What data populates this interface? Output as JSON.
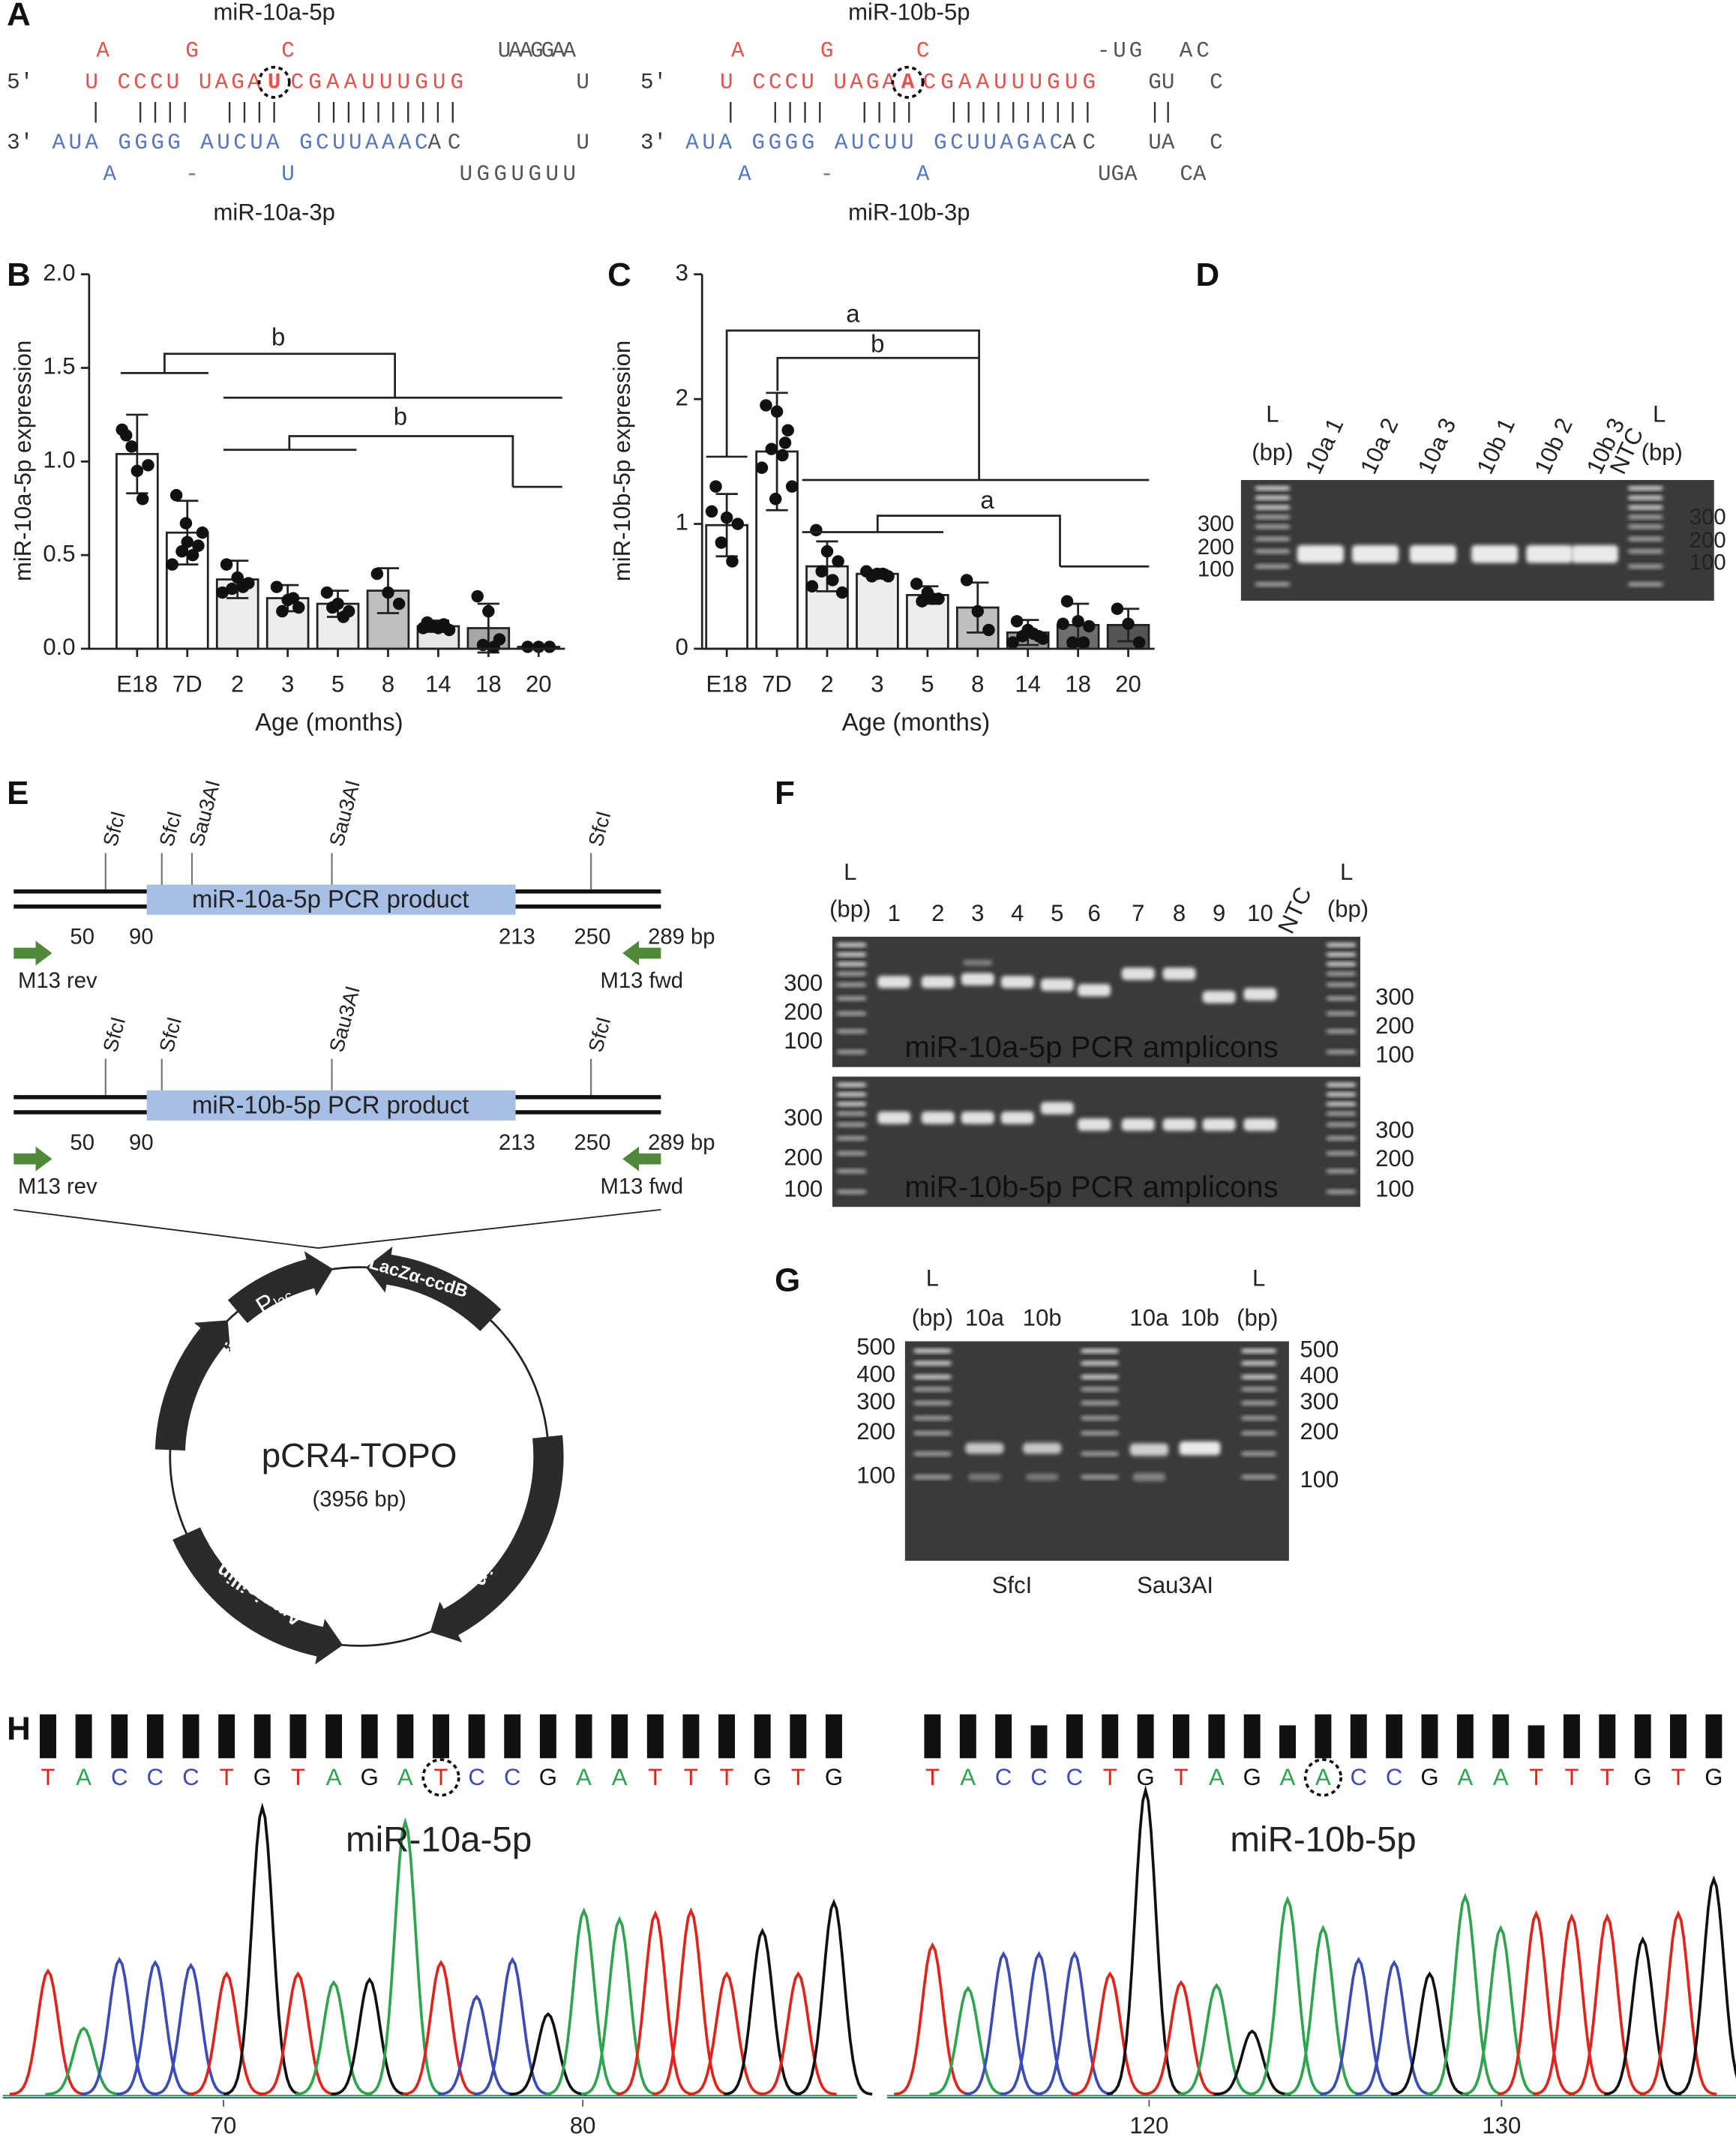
{
  "panel_labels": [
    "A",
    "B",
    "C",
    "D",
    "E",
    "F",
    "G",
    "H"
  ],
  "panel_a": {
    "colors": {
      "guide": "#e5514b",
      "passenger": "#5577c4",
      "loop": "#555555",
      "end": "#333333"
    },
    "duplexes": [
      {
        "top_label": "miR-10a-5p",
        "bottom_label": "miR-10a-3p",
        "top_bulge": [
          "A",
          "G",
          "C",
          "UAAGGAA"
        ],
        "strand_5p": [
          "5'",
          "U CCCU UAGA",
          "U",
          "CGAAUUUGUG",
          "U"
        ],
        "pairs": [
          "|  ||||  ||||  ||||||||||"
        ],
        "strand_3p": [
          "3'",
          "AUA GGGG AUCUA GCUUAAAC",
          "AC",
          "U"
        ],
        "bottom_bulge": [
          "A",
          "-",
          "U",
          "UGGUGUU"
        ]
      },
      {
        "top_label": "miR-10b-5p",
        "bottom_label": "miR-10b-3p",
        "top_bulge": [
          "A",
          "G",
          "C",
          "-UG",
          "AC"
        ],
        "strand_5p": [
          "5'",
          "U CCCU UAGA",
          "A",
          "CGAAUUUGUG",
          "GU",
          "C"
        ],
        "pairs": [
          "|  ||||  ||||  ||||||||||",
          "||"
        ],
        "strand_3p": [
          "3'",
          "AUA GGGG AUCUU GCUUAGAC",
          "AC",
          "UA",
          "C"
        ],
        "bottom_bulge": [
          "A",
          "-",
          "A",
          "UGA",
          "CA"
        ]
      }
    ]
  },
  "chart_data": [
    {
      "type": "bar",
      "ylabel": "miR-10a-5p expression",
      "xlabel": "Age (months)",
      "categories": [
        "E18",
        "7D",
        "2",
        "3",
        "5",
        "8",
        "14",
        "18",
        "20"
      ],
      "values": [
        1.04,
        0.62,
        0.37,
        0.27,
        0.24,
        0.31,
        0.12,
        0.11,
        0.01
      ],
      "errors": [
        0.21,
        0.17,
        0.1,
        0.07,
        0.07,
        0.12,
        0.03,
        0.13,
        0.01
      ],
      "points": [
        [
          1.14,
          0.95,
          0.98,
          1.08,
          0.8,
          1.17
        ],
        [
          0.82,
          0.57,
          0.55,
          0.52,
          0.5,
          0.45,
          0.62,
          0.67
        ],
        [
          0.45,
          0.38,
          0.35,
          0.32,
          0.33,
          0.3
        ],
        [
          0.33,
          0.26,
          0.22,
          0.2,
          0.27
        ],
        [
          0.3,
          0.24,
          0.2,
          0.22,
          0.17
        ],
        [
          0.4,
          0.3,
          0.24
        ],
        [
          0.14,
          0.11,
          0.1,
          0.12,
          0.13,
          0.11
        ],
        [
          0.28,
          0.2,
          0.05,
          0.02,
          0.01
        ],
        [
          0.01,
          0.01,
          0.01
        ]
      ],
      "colors": [
        "#ffffff",
        "#ffffff",
        "#ececec",
        "#ececec",
        "#ececec",
        "#bfbfbf",
        "#e6e6e6",
        "#a6a6a6",
        "#808080"
      ],
      "ylim": [
        0,
        2
      ],
      "yticks": [
        {
          "value": 0,
          "label": "0.0"
        },
        0.5,
        {
          "value": 1,
          "label": "1.0"
        },
        1.5,
        {
          "value": 2,
          "label": "2.0"
        }
      ],
      "annotations": [
        "b",
        "b"
      ]
    },
    {
      "type": "bar",
      "ylabel": "miR-10b-5p expression",
      "xlabel": "Age (months)",
      "categories": [
        "E18",
        "7D",
        "2",
        "3",
        "5",
        "8",
        "14",
        "18",
        "20"
      ],
      "values": [
        0.99,
        1.58,
        0.66,
        0.6,
        0.43,
        0.33,
        0.13,
        0.19,
        0.19
      ],
      "errors": [
        0.25,
        0.47,
        0.2,
        0.03,
        0.07,
        0.2,
        0.1,
        0.17,
        0.13
      ],
      "points": [
        [
          1.3,
          1.05,
          1.0,
          0.85,
          0.7,
          1.1
        ],
        [
          1.95,
          1.9,
          1.75,
          1.6,
          1.55,
          1.45,
          1.3,
          1.2,
          1.65
        ],
        [
          0.95,
          0.78,
          0.7,
          0.62,
          0.55,
          0.5,
          0.45
        ],
        [
          0.62,
          0.6,
          0.58,
          0.58,
          0.6
        ],
        [
          0.52,
          0.45,
          0.4,
          0.38,
          0.4
        ],
        [
          0.55,
          0.3,
          0.15
        ],
        [
          0.22,
          0.15,
          0.1,
          0.1,
          0.12,
          0.05,
          0.08
        ],
        [
          0.38,
          0.22,
          0.18,
          0.05,
          0.05,
          0.2
        ],
        [
          0.32,
          0.2,
          0.05
        ]
      ],
      "colors": [
        "#ffffff",
        "#ffffff",
        "#ececec",
        "#ececec",
        "#ececec",
        "#bfbfbf",
        "#9b9b9b",
        "#6e6e6e",
        "#555555"
      ],
      "ylim": [
        0,
        3
      ],
      "yticks": [
        0,
        1,
        2,
        3
      ],
      "annotations": [
        "a",
        "b",
        "a"
      ]
    }
  ],
  "panel_d": {
    "ladder_label": "L",
    "unit": "(bp)",
    "lanes": [
      "10a 1",
      "10a 2",
      "10a 3",
      "10b 1",
      "10b 2",
      "10b 3",
      "NTC"
    ],
    "sizes": [
      300,
      200,
      100
    ]
  },
  "panel_e": {
    "maps": [
      {
        "sites": [
          "SfcI",
          "SfcI",
          "Sau3AI",
          "Sau3AI",
          "SfcI"
        ],
        "insert": "miR-10a-5p PCR product",
        "positions": [
          50,
          90,
          213,
          250
        ],
        "end": "289 bp",
        "primer_rev": "M13 rev",
        "primer_fwd": "M13 fwd"
      },
      {
        "sites": [
          "SfcI",
          "SfcI",
          "Sau3AI",
          "SfcI"
        ],
        "insert": "miR-10b-5p PCR product",
        "positions": [
          50,
          90,
          213,
          250
        ],
        "end": "289 bp",
        "primer_rev": "M13 rev",
        "primer_fwd": "M13 fwd"
      }
    ],
    "plasmid": {
      "name": "pCR4-TOPO",
      "size": "(3956 bp)",
      "promoter": "P",
      "promoter_sub": "lac",
      "features": [
        "LacZα-ccdB",
        "pUC ori",
        "Kanamycin",
        "Ampicillin"
      ]
    }
  },
  "panel_f": {
    "ladder_label": "L",
    "unit": "(bp)",
    "lanes": [
      "1",
      "2",
      "3",
      "4",
      "5",
      "6",
      "7",
      "8",
      "9",
      "10",
      "NTC"
    ],
    "sizes": [
      300,
      200,
      100
    ],
    "gel_labels": [
      "miR-10a-5p PCR amplicons",
      "miR-10b-5p PCR amplicons"
    ]
  },
  "panel_g": {
    "ladder_label": "L",
    "unit": "(bp)",
    "lanes": [
      "10a",
      "10b",
      "10a",
      "10b"
    ],
    "sizes": [
      500,
      400,
      300,
      200,
      100
    ],
    "enzymes": [
      "SfcI",
      "Sau3AI"
    ]
  },
  "panel_h": {
    "base_colors": {
      "A": "#2ea44f",
      "C": "#3b4bb8",
      "G": "#111111",
      "T": "#e2231a"
    },
    "traces": [
      {
        "title": "miR-10a-5p",
        "bases": [
          "T",
          "A",
          "C",
          "C",
          "C",
          "T",
          "G",
          "T",
          "A",
          "G",
          "A",
          "T",
          "C",
          "C",
          "G",
          "A",
          "A",
          "T",
          "T",
          "T",
          "G",
          "T",
          "G"
        ],
        "peaks": [
          0.43,
          0.23,
          0.47,
          0.46,
          0.45,
          0.42,
          1.0,
          0.42,
          0.39,
          0.4,
          0.95,
          0.46,
          0.34,
          0.47,
          0.28,
          0.64,
          0.61,
          0.63,
          0.64,
          0.42,
          0.57,
          0.42,
          0.67
        ],
        "xticks": [
          70,
          80
        ]
      },
      {
        "title": "miR-10b-5p",
        "bases": [
          "T",
          "A",
          "C",
          "C",
          "C",
          "T",
          "G",
          "T",
          "A",
          "G",
          "A",
          "A",
          "C",
          "C",
          "G",
          "A",
          "A",
          "T",
          "T",
          "T",
          "G",
          "T",
          "G"
        ],
        "peaks": [
          0.52,
          0.37,
          0.49,
          0.49,
          0.49,
          0.42,
          1.06,
          0.39,
          0.38,
          0.22,
          0.68,
          0.58,
          0.47,
          0.46,
          0.42,
          0.69,
          0.58,
          0.63,
          0.62,
          0.62,
          0.54,
          0.63,
          0.75
        ],
        "xticks": [
          120,
          130
        ]
      }
    ]
  }
}
